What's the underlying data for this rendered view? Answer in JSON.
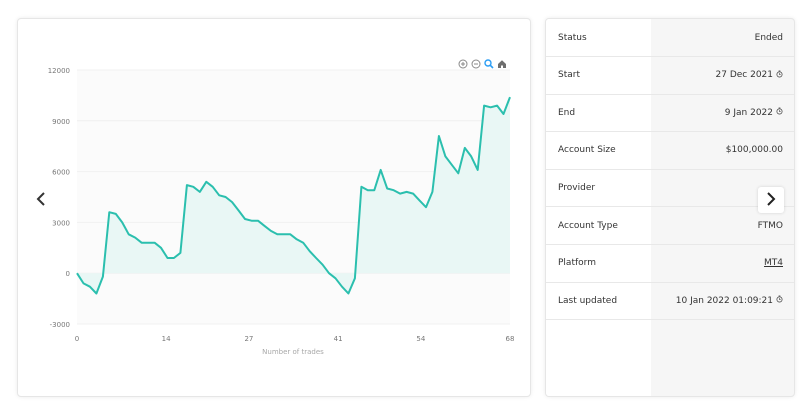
{
  "toolbar": {
    "icons": [
      "zoom-in-icon",
      "zoom-out-icon",
      "magnify-icon",
      "home-icon"
    ]
  },
  "navigation": {
    "prev_icon": "chevron-left-icon",
    "next_icon": "chevron-right-icon"
  },
  "colors": {
    "line": "#2bbfae",
    "area": "#e9f7f5",
    "active_icon": "#2a9df4"
  },
  "chart_data": {
    "type": "area",
    "xlabel": "Number of trades",
    "ylabel": "",
    "xlim": [
      0,
      68
    ],
    "ylim": [
      -3000,
      12000
    ],
    "x_ticks": [
      "0",
      "14",
      "27",
      "41",
      "54",
      "68"
    ],
    "y_ticks": [
      "12000",
      "9000",
      "6000",
      "3000",
      "0",
      "-3000"
    ],
    "grid": true,
    "series": [
      {
        "values": [
          0,
          -600,
          -800,
          -1200,
          -200,
          3600,
          3500,
          3000,
          2300,
          2100,
          1800,
          1800,
          1800,
          1500,
          900,
          900,
          1200,
          5200,
          5100,
          4800,
          5400,
          5100,
          4600,
          4500,
          4200,
          3700,
          3200,
          3100,
          3100,
          2800,
          2500,
          2300,
          2300,
          2300,
          2000,
          1800,
          1300,
          900,
          500,
          0,
          -300,
          -800,
          -1200,
          -300,
          5100,
          4900,
          4900,
          6100,
          5000,
          4900,
          4700,
          4800,
          4700,
          4300,
          3900,
          4800,
          8100,
          6900,
          6400,
          5900,
          7400,
          6900,
          6100,
          9900,
          9800,
          9900,
          9400,
          10400
        ]
      }
    ]
  },
  "details": [
    {
      "label": "Status",
      "value": "Ended",
      "type": "text"
    },
    {
      "label": "Start",
      "value": "27 Dec 2021",
      "type": "time"
    },
    {
      "label": "End",
      "value": "9 Jan 2022",
      "type": "time"
    },
    {
      "label": "Account Size",
      "value": "$100,000.00",
      "type": "text"
    },
    {
      "label": "Provider",
      "value": "",
      "type": "text"
    },
    {
      "label": "Account Type",
      "value": "FTMO",
      "type": "text"
    },
    {
      "label": "Platform",
      "value": "MT4",
      "type": "link"
    },
    {
      "label": "Last updated",
      "value": "10 Jan 2022 01:09:21",
      "type": "time"
    }
  ]
}
